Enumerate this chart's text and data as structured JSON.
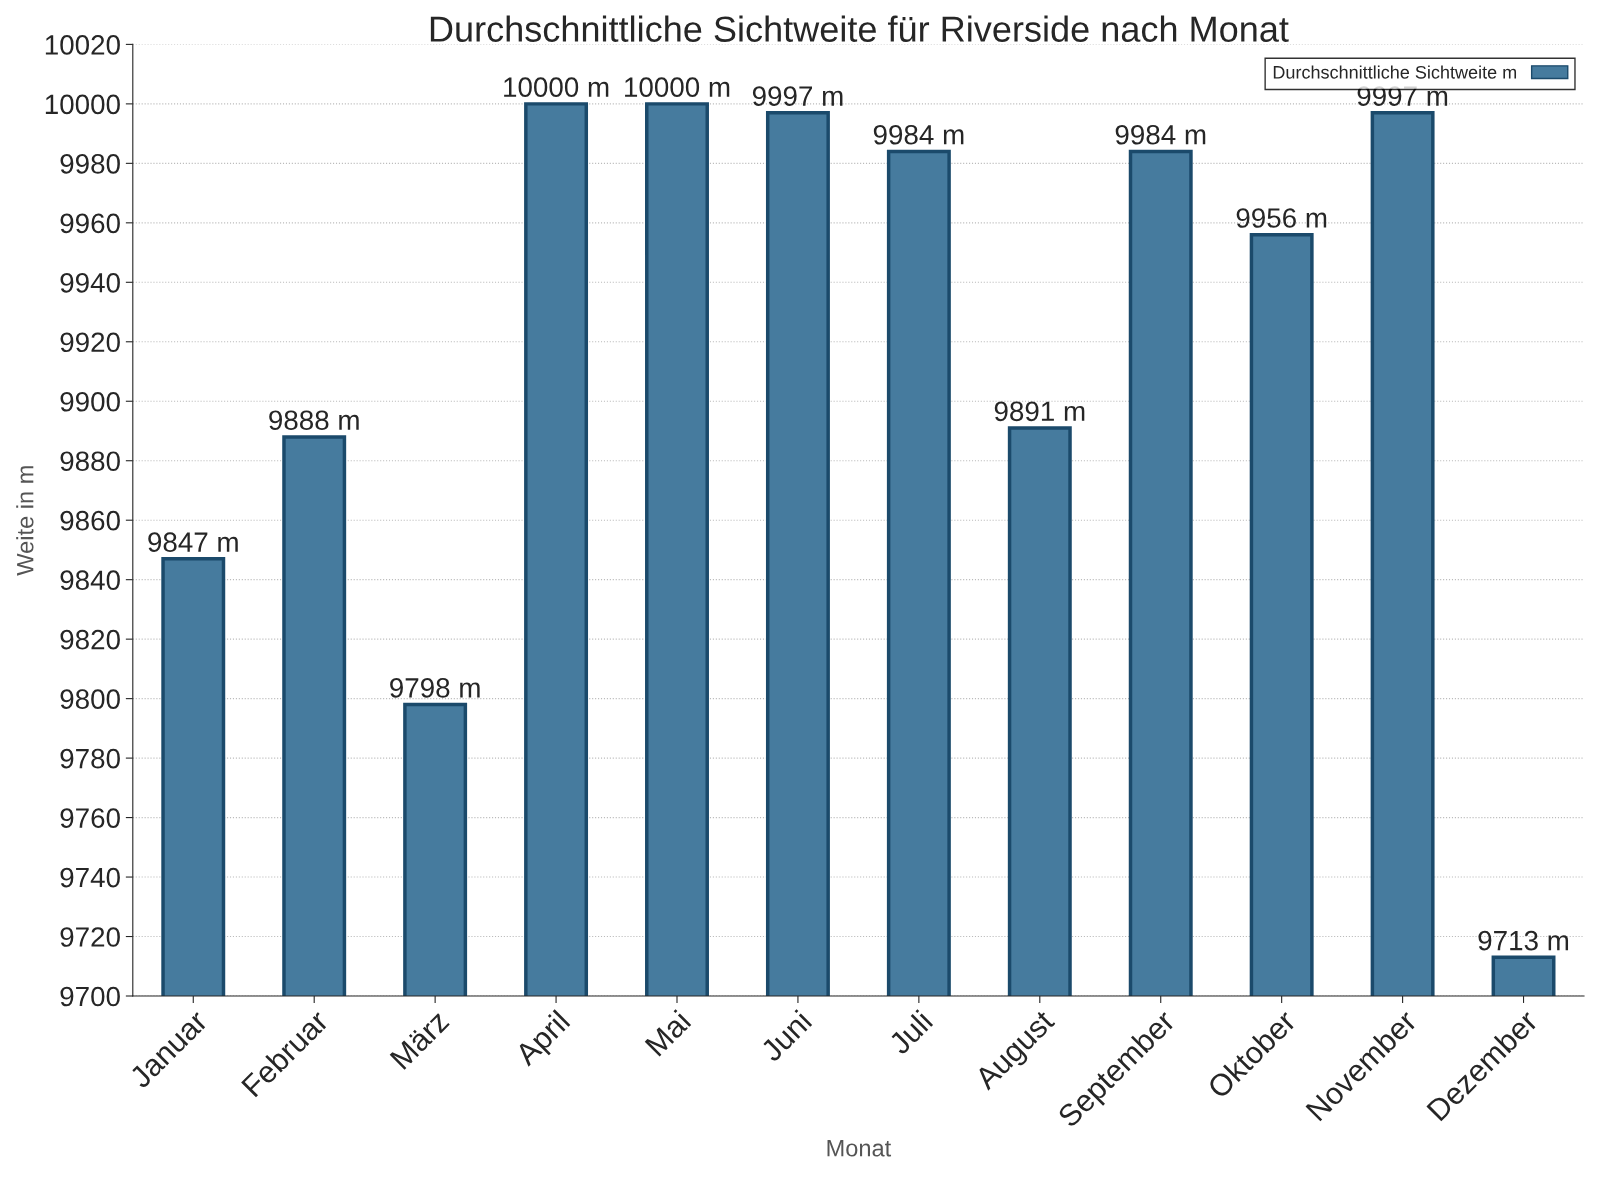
{
  "chart_data": {
    "type": "bar",
    "title": "Durchschnittliche Sichtweite für Riverside nach Monat",
    "xlabel": "Monat",
    "ylabel": "Weite in m",
    "categories": [
      "Januar",
      "Februar",
      "März",
      "April",
      "Mai",
      "Juni",
      "Juli",
      "August",
      "September",
      "Oktober",
      "November",
      "Dezember"
    ],
    "series": [
      {
        "name": "Durchschnittliche Sichtweite m",
        "color": "#467b9e",
        "values": [
          9847,
          9888,
          9798,
          10000,
          10000,
          9997,
          9984,
          9891,
          9984,
          9956,
          9997,
          9713
        ],
        "value_labels": [
          "9847 m",
          "9888 m",
          "9798 m",
          "10000 m",
          "10000 m",
          "9997 m",
          "9984 m",
          "9891 m",
          "9984 m",
          "9956 m",
          "9997 m",
          "9713 m"
        ]
      }
    ],
    "ylim": [
      9700,
      10020
    ],
    "yticks": [
      9700,
      9720,
      9740,
      9760,
      9780,
      9800,
      9820,
      9840,
      9860,
      9880,
      9900,
      9920,
      9940,
      9960,
      9980,
      10000,
      10020
    ],
    "grid": "y",
    "legend": "top right"
  }
}
